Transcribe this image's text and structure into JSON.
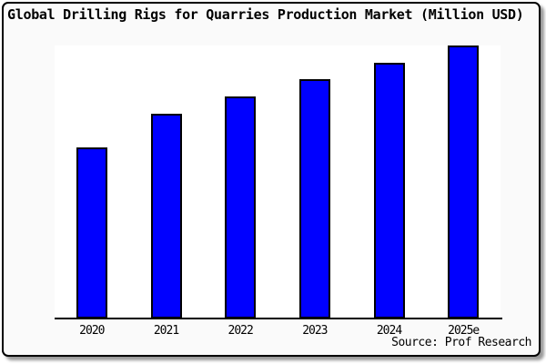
{
  "title": "Global Drilling Rigs for Quarries Production Market (Million USD)",
  "source_label": "Source: Prof Research",
  "colors": {
    "bar_fill": "#0000ff",
    "bar_border": "#000000",
    "frame_background": "#fafafa",
    "plot_background": "#ffffff",
    "axis": "#000000",
    "text": "#000000",
    "frame_border": "#000000",
    "shadow": "#999999"
  },
  "chart_data": {
    "type": "bar",
    "title": "Global Drilling Rigs for Quarries Production Market (Million USD)",
    "unit": "Million USD",
    "categories": [
      "2020",
      "2021",
      "2022",
      "2023",
      "2024",
      "2025e"
    ],
    "values_pct_of_max": [
      62.7,
      75.0,
      81.3,
      87.7,
      93.7,
      100.0
    ],
    "xlabel": "",
    "ylabel": "",
    "y_axis_labels_shown": false,
    "data_labels_shown": false,
    "grid": false,
    "legend": false,
    "source": "Source: Prof Research"
  }
}
